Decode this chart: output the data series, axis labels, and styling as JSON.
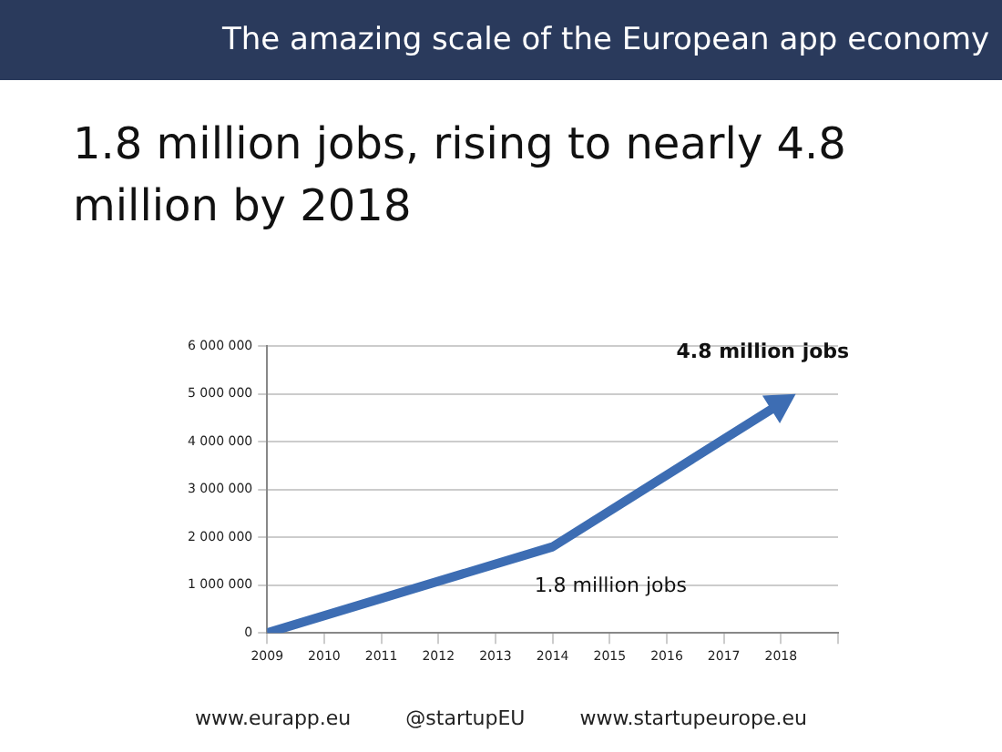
{
  "chart_data": {
    "type": "line",
    "title": "The amazing scale of the European app economy",
    "subtitle": "1.8 million jobs, rising to nearly 4.8 million by 2018",
    "x": [
      2009,
      2014,
      2018
    ],
    "series": [
      {
        "color": "#3d6db3",
        "values": [
          0,
          1800000,
          4800000
        ]
      }
    ],
    "xlim": [
      2009,
      2019
    ],
    "xticks": [
      2009,
      2010,
      2011,
      2012,
      2013,
      2014,
      2015,
      2016,
      2017,
      2018,
      {
        "value": 2019,
        "label": null
      }
    ],
    "ylim": [
      0,
      6000000
    ],
    "yticks": [
      0,
      {
        "value": 1000000,
        "label": "1 000 000"
      },
      {
        "value": 2000000,
        "label": "2 000 000"
      },
      {
        "value": 3000000,
        "label": "3 000 000"
      },
      {
        "value": 4000000,
        "label": "4 000 000"
      },
      {
        "value": 5000000,
        "label": "5 000 000"
      },
      {
        "value": 6000000,
        "label": "6 000 000"
      }
    ],
    "grid": "y",
    "legend": false,
    "marker": "none",
    "line_style": "solid",
    "annotations": [
      {
        "text": "4.8 million jobs",
        "x": 2018,
        "y": 4800000
      },
      {
        "text": "1.8 million jobs",
        "x": 2014,
        "y": 1800000
      },
      "www.eurapp.eu",
      "@startupEU",
      "www.startupeurope.eu"
    ]
  }
}
